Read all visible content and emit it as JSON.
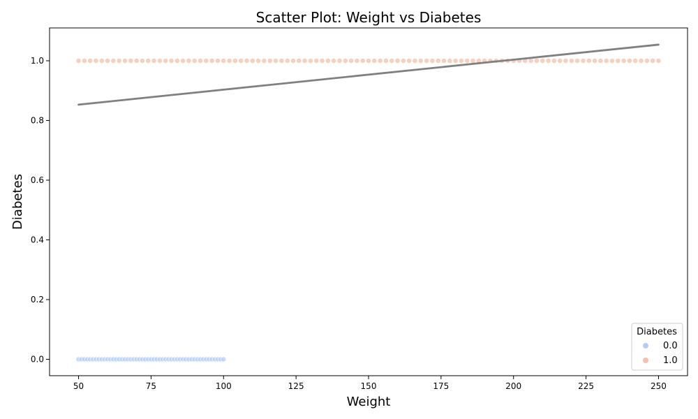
{
  "chart_data": {
    "type": "scatter",
    "title": "Scatter Plot: Weight vs Diabetes",
    "xlabel": "Weight",
    "ylabel": "Diabetes",
    "xlim": [
      40,
      260
    ],
    "ylim": [
      -0.055,
      1.11
    ],
    "xticks": [
      50,
      75,
      100,
      125,
      150,
      175,
      200,
      225,
      250
    ],
    "yticks": [
      0.0,
      0.2,
      0.4,
      0.6,
      0.8,
      1.0
    ],
    "xtick_labels": [
      "50",
      "75",
      "100",
      "125",
      "150",
      "175",
      "200",
      "225",
      "250"
    ],
    "ytick_labels": [
      "0.0",
      "0.2",
      "0.4",
      "0.6",
      "0.8",
      "1.0"
    ],
    "grid": false,
    "legend": {
      "title": "Diabetes",
      "placement": "lower-right",
      "entries": [
        {
          "label": "0.0",
          "color": "#b4cdf6"
        },
        {
          "label": "1.0",
          "color": "#f2c0ab"
        }
      ]
    },
    "series": [
      {
        "name": "0.0",
        "color": "#b4cdf6",
        "y": 0,
        "x": [
          50,
          51,
          52,
          53,
          54,
          55,
          56,
          57,
          58,
          59,
          60,
          61,
          62,
          63,
          64,
          65,
          66,
          67,
          68,
          69,
          70,
          71,
          72,
          73,
          74,
          75,
          76,
          77,
          78,
          79,
          80,
          81,
          82,
          83,
          84,
          85,
          86,
          87,
          88,
          89,
          90,
          91,
          92,
          93,
          94,
          95,
          96,
          97,
          98,
          99,
          100
        ]
      },
      {
        "name": "1.0",
        "color": "#f2c0ab",
        "y": 1,
        "x": [
          50,
          52,
          54,
          56,
          58,
          60,
          62,
          64,
          66,
          68,
          70,
          72,
          74,
          76,
          78,
          80,
          82,
          84,
          86,
          88,
          90,
          92,
          94,
          96,
          98,
          100,
          102,
          104,
          106,
          108,
          110,
          112,
          114,
          116,
          118,
          120,
          122,
          124,
          126,
          128,
          130,
          132,
          134,
          136,
          138,
          140,
          142,
          144,
          146,
          148,
          150,
          152,
          154,
          156,
          158,
          160,
          162,
          164,
          166,
          168,
          170,
          172,
          174,
          176,
          178,
          180,
          182,
          184,
          186,
          188,
          190,
          192,
          194,
          196,
          198,
          200,
          202,
          204,
          206,
          208,
          210,
          212,
          214,
          216,
          218,
          220,
          222,
          224,
          226,
          228,
          230,
          232,
          234,
          236,
          238,
          240,
          242,
          244,
          246,
          248,
          250
        ]
      }
    ],
    "trendline": {
      "color": "#808080",
      "x": [
        50,
        250
      ],
      "y": [
        0.853,
        1.054
      ]
    }
  }
}
